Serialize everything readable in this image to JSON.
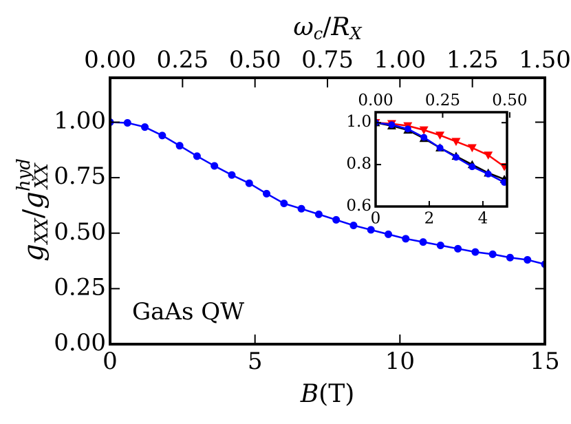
{
  "chart_data": [
    {
      "type": "line",
      "x_label": [
        "B",
        "(T)"
      ],
      "x2_label": [
        "ω",
        "c",
        "/",
        "R",
        "X"
      ],
      "y_label": [
        "g",
        "XX",
        "/",
        "g",
        "hyd",
        "XX"
      ],
      "annotation": "GaAs QW",
      "xlim": [
        0,
        15
      ],
      "xticks": [
        0,
        5,
        10,
        15
      ],
      "x2lim": [
        0,
        1.5
      ],
      "x2ticks": [
        {
          "value": 0,
          "label": "0.00"
        },
        {
          "value": 0.25,
          "label": "0.25"
        },
        {
          "value": 0.5,
          "label": "0.50"
        },
        {
          "value": 0.75,
          "label": "0.75"
        },
        {
          "value": 1,
          "label": "1.00"
        },
        {
          "value": 1.25,
          "label": "1.25"
        },
        {
          "value": 1.5,
          "label": "1.50"
        }
      ],
      "ylim": [
        0,
        1.2
      ],
      "yticks": [
        {
          "value": 0,
          "label": "0.00"
        },
        {
          "value": 0.25,
          "label": "0.25"
        },
        {
          "value": 0.5,
          "label": "0.50"
        },
        {
          "value": 0.75,
          "label": "0.75"
        },
        {
          "value": 1,
          "label": "1.00"
        }
      ],
      "x": [
        0,
        0.6,
        1.2,
        1.8,
        2.4,
        3.0,
        3.6,
        4.2,
        4.8,
        5.4,
        6.0,
        6.6,
        7.2,
        7.8,
        8.4,
        9.0,
        9.6,
        10.2,
        10.8,
        11.4,
        12.0,
        12.6,
        13.2,
        13.8,
        14.4,
        15.0
      ],
      "series": [
        {
          "color": "#0000ff",
          "marker": "circle",
          "values": [
            1.0,
            0.997,
            0.978,
            0.94,
            0.894,
            0.847,
            0.803,
            0.762,
            0.725,
            0.678,
            0.634,
            0.61,
            0.585,
            0.56,
            0.535,
            0.515,
            0.495,
            0.475,
            0.46,
            0.445,
            0.43,
            0.415,
            0.405,
            0.39,
            0.38,
            0.36
          ]
        }
      ]
    },
    {
      "type": "line",
      "xlim": [
        0,
        4.9
      ],
      "xticks": [
        0,
        2,
        4
      ],
      "x2lim": [
        0,
        0.49
      ],
      "x2ticks": [
        {
          "value": 0,
          "label": "0.00"
        },
        {
          "value": 0.25,
          "label": "0.25"
        },
        {
          "value": 0.5,
          "label": "0.50"
        }
      ],
      "ylim": [
        0.6,
        1.05
      ],
      "yticks": [
        0.6,
        0.8,
        {
          "value": 1,
          "label": "1.0"
        }
      ],
      "x": [
        0,
        0.6,
        1.2,
        1.8,
        2.4,
        3.0,
        3.6,
        4.2,
        4.8
      ],
      "series": [
        {
          "color": "#ff0000",
          "marker": "triangle-down",
          "values": [
            1.0,
            0.995,
            0.985,
            0.965,
            0.94,
            0.91,
            0.88,
            0.845,
            0.79
          ]
        },
        {
          "color": "#000000",
          "marker": "triangle-up",
          "values": [
            1.0,
            0.985,
            0.965,
            0.925,
            0.88,
            0.84,
            0.8,
            0.76,
            0.73
          ]
        },
        {
          "color": "#0000ff",
          "marker": "circle",
          "values": [
            1.0,
            0.99,
            0.97,
            0.93,
            0.88,
            0.835,
            0.79,
            0.755,
            0.715
          ]
        }
      ]
    }
  ]
}
